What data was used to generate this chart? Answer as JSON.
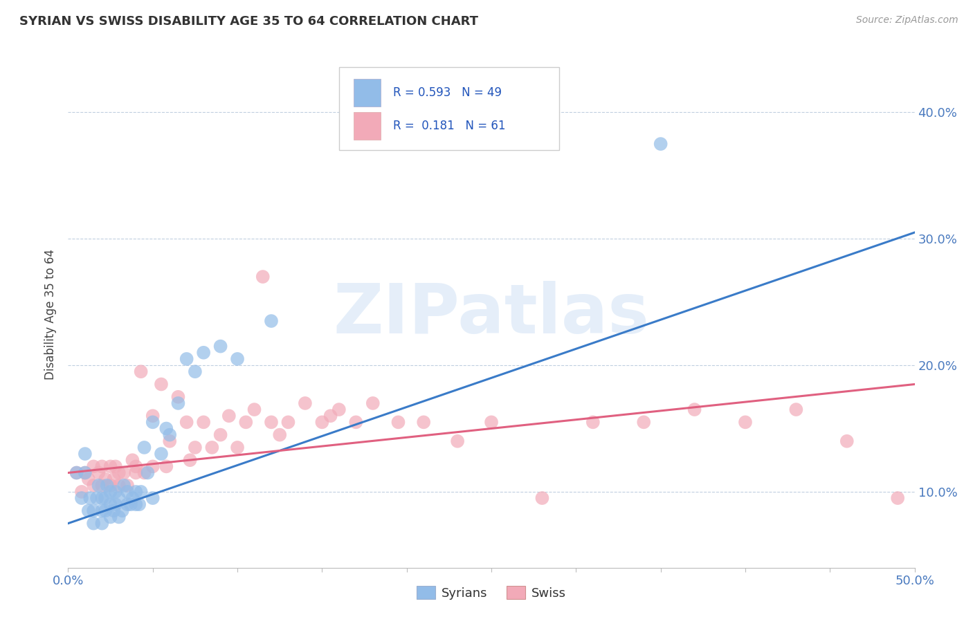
{
  "title": "SYRIAN VS SWISS DISABILITY AGE 35 TO 64 CORRELATION CHART",
  "source": "Source: ZipAtlas.com",
  "ylabel": "Disability Age 35 to 64",
  "xlim": [
    0.0,
    0.5
  ],
  "ylim": [
    0.04,
    0.44
  ],
  "xticks": [
    0.0,
    0.05,
    0.1,
    0.15,
    0.2,
    0.25,
    0.3,
    0.35,
    0.4,
    0.45,
    0.5
  ],
  "yticks": [
    0.1,
    0.2,
    0.3,
    0.4
  ],
  "ytick_labels": [
    "10.0%",
    "20.0%",
    "30.0%",
    "40.0%"
  ],
  "xtick_labels_show": [
    "0.0%",
    "50.0%"
  ],
  "blue_R": 0.593,
  "blue_N": 49,
  "pink_R": 0.181,
  "pink_N": 61,
  "blue_color": "#92bce8",
  "pink_color": "#f2aab8",
  "blue_line_color": "#3a7bc8",
  "pink_line_color": "#e06080",
  "watermark_text": "ZIPatlas",
  "legend_label_blue": "Syrians",
  "legend_label_pink": "Swiss",
  "blue_scatter_x": [
    0.005,
    0.008,
    0.01,
    0.01,
    0.012,
    0.013,
    0.015,
    0.015,
    0.017,
    0.018,
    0.02,
    0.02,
    0.02,
    0.022,
    0.022,
    0.023,
    0.025,
    0.025,
    0.025,
    0.027,
    0.028,
    0.028,
    0.03,
    0.03,
    0.032,
    0.033,
    0.035,
    0.035,
    0.037,
    0.038,
    0.04,
    0.04,
    0.042,
    0.043,
    0.045,
    0.047,
    0.05,
    0.05,
    0.055,
    0.058,
    0.06,
    0.065,
    0.07,
    0.075,
    0.08,
    0.09,
    0.1,
    0.12,
    0.35
  ],
  "blue_scatter_y": [
    0.115,
    0.095,
    0.13,
    0.115,
    0.085,
    0.095,
    0.075,
    0.085,
    0.095,
    0.105,
    0.075,
    0.085,
    0.095,
    0.085,
    0.095,
    0.105,
    0.08,
    0.09,
    0.1,
    0.085,
    0.09,
    0.1,
    0.08,
    0.095,
    0.085,
    0.105,
    0.09,
    0.1,
    0.09,
    0.095,
    0.09,
    0.1,
    0.09,
    0.1,
    0.135,
    0.115,
    0.095,
    0.155,
    0.13,
    0.15,
    0.145,
    0.17,
    0.205,
    0.195,
    0.21,
    0.215,
    0.205,
    0.235,
    0.375
  ],
  "pink_scatter_x": [
    0.005,
    0.008,
    0.01,
    0.012,
    0.015,
    0.015,
    0.018,
    0.02,
    0.02,
    0.022,
    0.025,
    0.025,
    0.027,
    0.028,
    0.03,
    0.03,
    0.033,
    0.035,
    0.038,
    0.04,
    0.04,
    0.043,
    0.045,
    0.05,
    0.05,
    0.055,
    0.058,
    0.06,
    0.065,
    0.07,
    0.072,
    0.075,
    0.08,
    0.085,
    0.09,
    0.095,
    0.1,
    0.105,
    0.11,
    0.115,
    0.12,
    0.125,
    0.13,
    0.14,
    0.15,
    0.155,
    0.16,
    0.17,
    0.18,
    0.195,
    0.21,
    0.23,
    0.25,
    0.28,
    0.31,
    0.34,
    0.37,
    0.4,
    0.43,
    0.46,
    0.49
  ],
  "pink_scatter_y": [
    0.115,
    0.1,
    0.115,
    0.11,
    0.105,
    0.12,
    0.115,
    0.105,
    0.12,
    0.11,
    0.105,
    0.12,
    0.11,
    0.12,
    0.105,
    0.115,
    0.115,
    0.105,
    0.125,
    0.115,
    0.12,
    0.195,
    0.115,
    0.12,
    0.16,
    0.185,
    0.12,
    0.14,
    0.175,
    0.155,
    0.125,
    0.135,
    0.155,
    0.135,
    0.145,
    0.16,
    0.135,
    0.155,
    0.165,
    0.27,
    0.155,
    0.145,
    0.155,
    0.17,
    0.155,
    0.16,
    0.165,
    0.155,
    0.17,
    0.155,
    0.155,
    0.14,
    0.155,
    0.095,
    0.155,
    0.155,
    0.165,
    0.155,
    0.165,
    0.14,
    0.095
  ],
  "blue_line_x": [
    0.0,
    0.5
  ],
  "blue_line_y": [
    0.075,
    0.305
  ],
  "pink_line_x": [
    0.0,
    0.5
  ],
  "pink_line_y": [
    0.115,
    0.185
  ]
}
